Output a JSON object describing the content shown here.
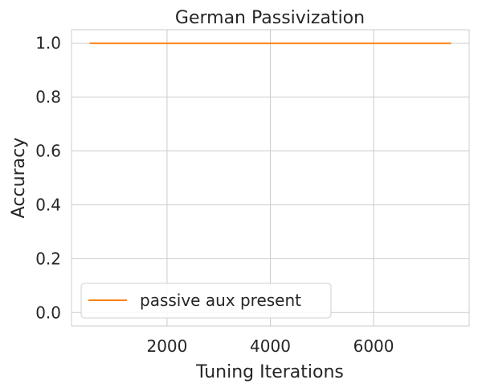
{
  "chart_data": {
    "type": "line",
    "title": "German Passivization",
    "xlabel": "Tuning Iterations",
    "ylabel": "Accuracy",
    "xlim": [
      150,
      7850
    ],
    "ylim": [
      -0.05,
      1.05
    ],
    "xticks": [
      2000,
      4000,
      6000
    ],
    "xtick_labels": [
      "2000",
      "4000",
      "6000"
    ],
    "yticks": [
      0.0,
      0.2,
      0.4,
      0.6,
      0.8,
      1.0
    ],
    "ytick_labels": [
      "0.0",
      "0.2",
      "0.4",
      "0.6",
      "0.8",
      "1.0"
    ],
    "grid": true,
    "legend_position": "lower-left",
    "series": [
      {
        "name": "passive aux present",
        "color": "#ff7f0e",
        "x": [
          500,
          7500
        ],
        "y": [
          1.0,
          1.0
        ]
      }
    ]
  }
}
